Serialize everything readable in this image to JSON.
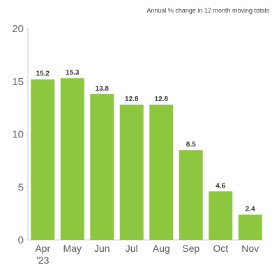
{
  "chart_data": {
    "type": "bar",
    "title": "",
    "subtitle": "Annual % change in 12 month moving totals",
    "xlabel": "",
    "ylabel": "",
    "ylim": [
      0,
      20
    ],
    "yticks": [
      0,
      5,
      10,
      15,
      20
    ],
    "categories": [
      "Apr '23",
      "May",
      "Jun",
      "Jul",
      "Aug",
      "Sep",
      "Oct",
      "Nov"
    ],
    "category_lines": [
      [
        "Apr",
        "'23"
      ],
      [
        "May"
      ],
      [
        "Jun"
      ],
      [
        "Jul"
      ],
      [
        "Aug"
      ],
      [
        "Sep"
      ],
      [
        "Oct"
      ],
      [
        "Nov"
      ]
    ],
    "values": [
      15.2,
      15.3,
      13.8,
      12.8,
      12.8,
      8.5,
      4.6,
      2.4
    ],
    "value_labels": [
      "15.2",
      "15.3",
      "13.8",
      "12.8",
      "12.8",
      "8.5",
      "4.6",
      "2.4"
    ],
    "grid": false,
    "legend": "none",
    "bar_color": "#8dc63f",
    "axis_color": "#cccccc"
  }
}
